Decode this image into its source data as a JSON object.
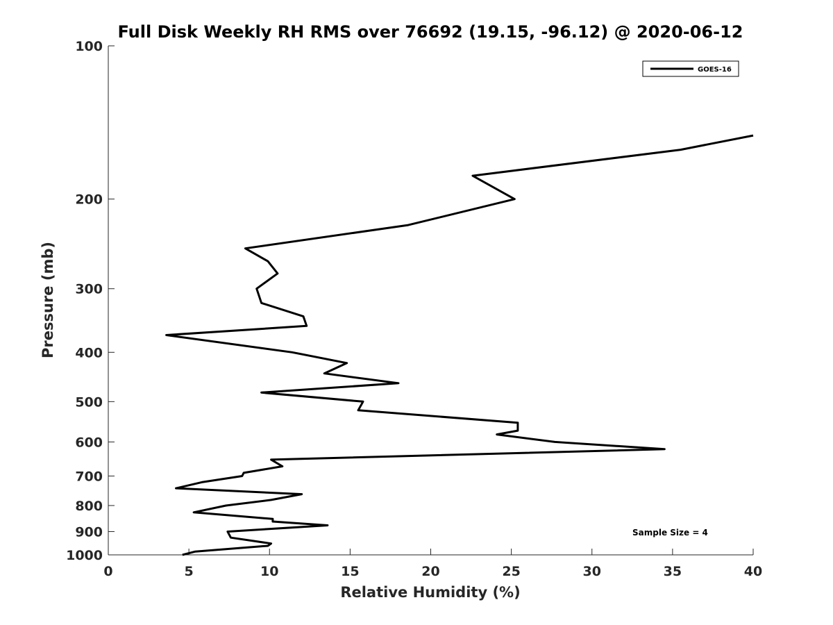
{
  "chart_data": {
    "type": "line",
    "title": "Full Disk Weekly RH RMS over 76692 (19.15, -96.12) @ 2020-06-12",
    "xlabel": "Relative Humidity (%)",
    "ylabel": "Pressure (mb)",
    "xlim": [
      0,
      40
    ],
    "ylim": [
      100,
      1000
    ],
    "yscale": "log",
    "yreversed": true,
    "xticks": [
      0,
      5,
      10,
      15,
      20,
      25,
      30,
      35,
      40
    ],
    "yticks": [
      100,
      200,
      300,
      400,
      500,
      600,
      700,
      800,
      900,
      1000
    ],
    "grid": false,
    "legend_position": "top-right",
    "series": [
      {
        "name": "GOES-16",
        "color": "#000000",
        "points": [
          [
            40.0,
            150
          ],
          [
            35.5,
            160
          ],
          [
            22.6,
            180
          ],
          [
            25.2,
            200
          ],
          [
            18.6,
            225
          ],
          [
            8.5,
            250
          ],
          [
            9.9,
            265
          ],
          [
            10.5,
            280
          ],
          [
            9.2,
            300
          ],
          [
            9.5,
            320
          ],
          [
            12.1,
            340
          ],
          [
            12.3,
            355
          ],
          [
            3.6,
            370
          ],
          [
            11.4,
            400
          ],
          [
            14.8,
            420
          ],
          [
            13.4,
            440
          ],
          [
            18.0,
            460
          ],
          [
            9.5,
            480
          ],
          [
            15.8,
            500
          ],
          [
            15.5,
            520
          ],
          [
            25.4,
            550
          ],
          [
            25.4,
            570
          ],
          [
            24.1,
            580
          ],
          [
            27.7,
            600
          ],
          [
            34.5,
            620
          ],
          [
            10.1,
            650
          ],
          [
            10.8,
            670
          ],
          [
            8.4,
            690
          ],
          [
            8.3,
            700
          ],
          [
            5.8,
            720
          ],
          [
            4.2,
            740
          ],
          [
            12.0,
            760
          ],
          [
            10.1,
            780
          ],
          [
            7.3,
            800
          ],
          [
            5.3,
            825
          ],
          [
            10.2,
            850
          ],
          [
            10.2,
            860
          ],
          [
            13.6,
            875
          ],
          [
            7.4,
            900
          ],
          [
            7.6,
            925
          ],
          [
            10.1,
            950
          ],
          [
            9.9,
            960
          ],
          [
            5.4,
            985
          ],
          [
            4.6,
            1000
          ]
        ]
      }
    ],
    "annotation": "Sample Size = 4"
  }
}
